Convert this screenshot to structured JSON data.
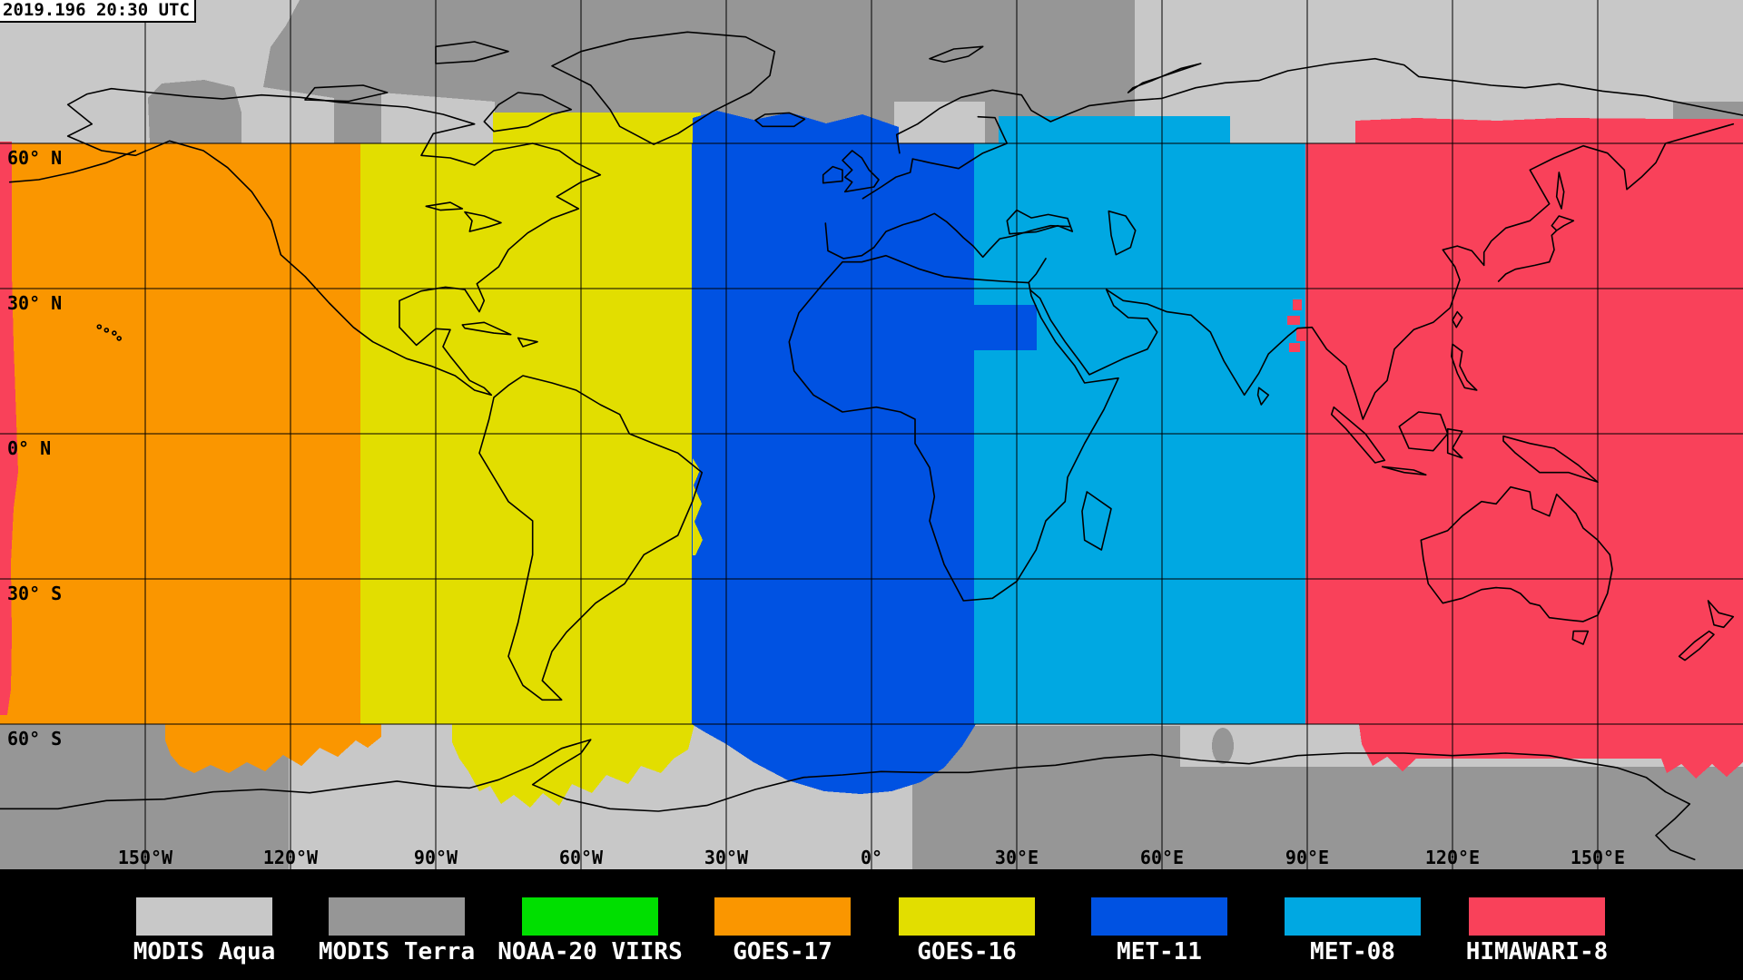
{
  "timestamp": "2019.196 20:30 UTC",
  "map": {
    "background": "#C8C8C8",
    "grid_color": "#000000",
    "coastline_color": "#000000",
    "lat_labels": [
      "60° N",
      "30° N",
      "0° N",
      "30° S",
      "60° S"
    ],
    "lon_labels": [
      "150°W",
      "120°W",
      "90°W",
      "60°W",
      "30°W",
      "0°",
      "30°E",
      "60°E",
      "90°E",
      "120°E",
      "150°E"
    ]
  },
  "legend": {
    "background": "#000000",
    "text_color": "#FFFFFF",
    "items": [
      {
        "label": "MODIS Aqua",
        "color": "#C8C8C8"
      },
      {
        "label": "MODIS Terra",
        "color": "#969696"
      },
      {
        "label": "NOAA-20 VIIRS",
        "color": "#00DF00"
      },
      {
        "label": "GOES-17",
        "color": "#FA9600"
      },
      {
        "label": "GOES-16",
        "color": "#E2DE00"
      },
      {
        "label": "MET-11",
        "color": "#0052E2"
      },
      {
        "label": "MET-08",
        "color": "#00A8E2"
      },
      {
        "label": "HIMAWARI-8",
        "color": "#F9415A"
      }
    ]
  }
}
